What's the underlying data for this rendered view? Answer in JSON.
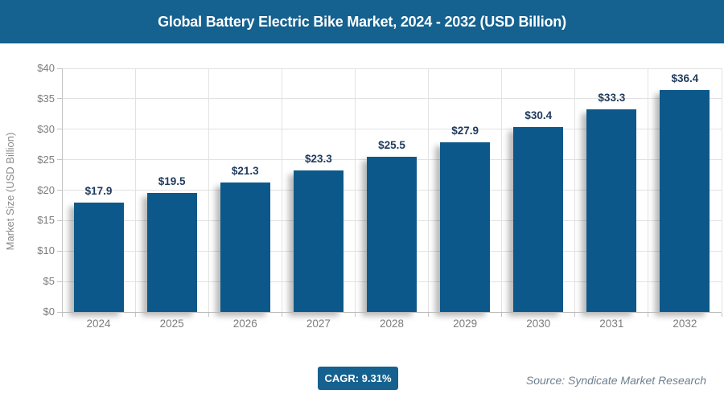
{
  "header": {
    "title": "Global Battery Electric Bike Market, 2024 - 2032 (USD Billion)"
  },
  "chart_data": {
    "type": "bar",
    "title": "Global Battery Electric Bike Market, 2024 - 2032 (USD Billion)",
    "categories": [
      "2024",
      "2025",
      "2026",
      "2027",
      "2028",
      "2029",
      "2030",
      "2031",
      "2032"
    ],
    "values": [
      17.9,
      19.5,
      21.3,
      23.3,
      25.5,
      27.9,
      30.4,
      33.3,
      36.4
    ],
    "value_label_prefix": "$",
    "xlabel": "",
    "ylabel": "Market Size (USD Billion)",
    "ylim": [
      0,
      40
    ],
    "ytick_step": 5,
    "ytick_label_prefix": "$",
    "grid": true,
    "legend": "none"
  },
  "footer": {
    "cagr_label": "CAGR: 9.31%",
    "source": "Source: Syndicate Market Research"
  },
  "colors": {
    "brand_blue": "#15618f",
    "bar_blue": "#0d588a",
    "grid_gray": "#e2e2e2",
    "axis_gray": "#c3c3c3",
    "axis_bottom_gray": "#b9b9b9",
    "tick_text_gray": "#7d7d7d",
    "value_text_navy": "#1f3a5c",
    "source_text_gray": "#6e8090",
    "background": "#ffffff"
  }
}
